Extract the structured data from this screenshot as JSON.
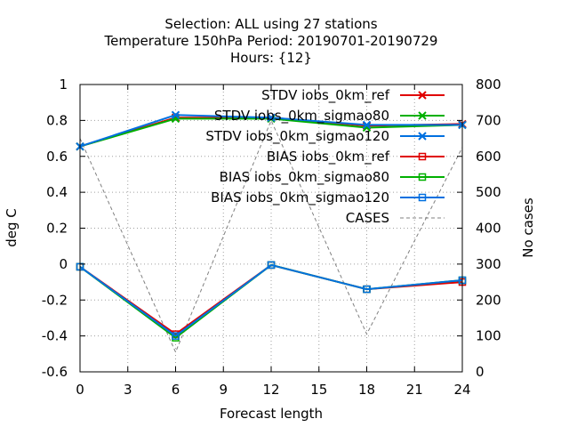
{
  "chart_data": {
    "type": "line",
    "title_lines": [
      "Selection: ALL using    27 stations",
      "Temperature 150hPa   Period: 20190701-20190729",
      "Hours: {12}"
    ],
    "xlabel": "Forecast length",
    "ylabel": "deg C",
    "y2label": "No cases",
    "xlim": [
      0,
      24
    ],
    "ylim": [
      -0.6,
      1
    ],
    "y2lim": [
      0,
      800
    ],
    "xticks": [
      "0",
      "3",
      "6",
      "9",
      "12",
      "15",
      "18",
      "21",
      "24"
    ],
    "yticks": [
      "-0.6",
      "-0.4",
      "-0.2",
      "0",
      "0.2",
      "0.4",
      "0.6",
      "0.8",
      "1"
    ],
    "y2ticks": [
      "0",
      "100",
      "200",
      "300",
      "400",
      "500",
      "600",
      "700",
      "800"
    ],
    "grid": true,
    "legend_position": "top-right",
    "x": [
      0,
      6,
      12,
      18,
      24
    ],
    "series": [
      {
        "name": "STDV iobs_0km_ref",
        "color": "#e00000",
        "marker": "x",
        "axis": "left",
        "values": [
          0.655,
          0.815,
          0.815,
          0.77,
          0.78
        ]
      },
      {
        "name": "STDV iobs_0km_sigmao80",
        "color": "#00b000",
        "marker": "x",
        "axis": "left",
        "values": [
          0.655,
          0.81,
          0.81,
          0.76,
          0.775
        ]
      },
      {
        "name": "STDV iobs_0km_sigmao120",
        "color": "#0070e0",
        "marker": "x",
        "axis": "left",
        "values": [
          0.655,
          0.83,
          0.815,
          0.775,
          0.775
        ]
      },
      {
        "name": "BIAS iobs_0km_ref",
        "color": "#e00000",
        "marker": "square",
        "axis": "left",
        "values": [
          -0.015,
          -0.39,
          -0.005,
          -0.14,
          -0.1
        ]
      },
      {
        "name": "BIAS iobs_0km_sigmao80",
        "color": "#00b000",
        "marker": "square",
        "axis": "left",
        "values": [
          -0.015,
          -0.41,
          -0.005,
          -0.14,
          -0.09
        ]
      },
      {
        "name": "BIAS iobs_0km_sigmao120",
        "color": "#0070e0",
        "marker": "square",
        "axis": "left",
        "values": [
          -0.015,
          -0.4,
          -0.005,
          -0.14,
          -0.09
        ]
      },
      {
        "name": "CASES",
        "color": "#808080",
        "marker": "none",
        "dashed": true,
        "axis": "right",
        "values": [
          650,
          55,
          700,
          105,
          625
        ]
      }
    ]
  }
}
